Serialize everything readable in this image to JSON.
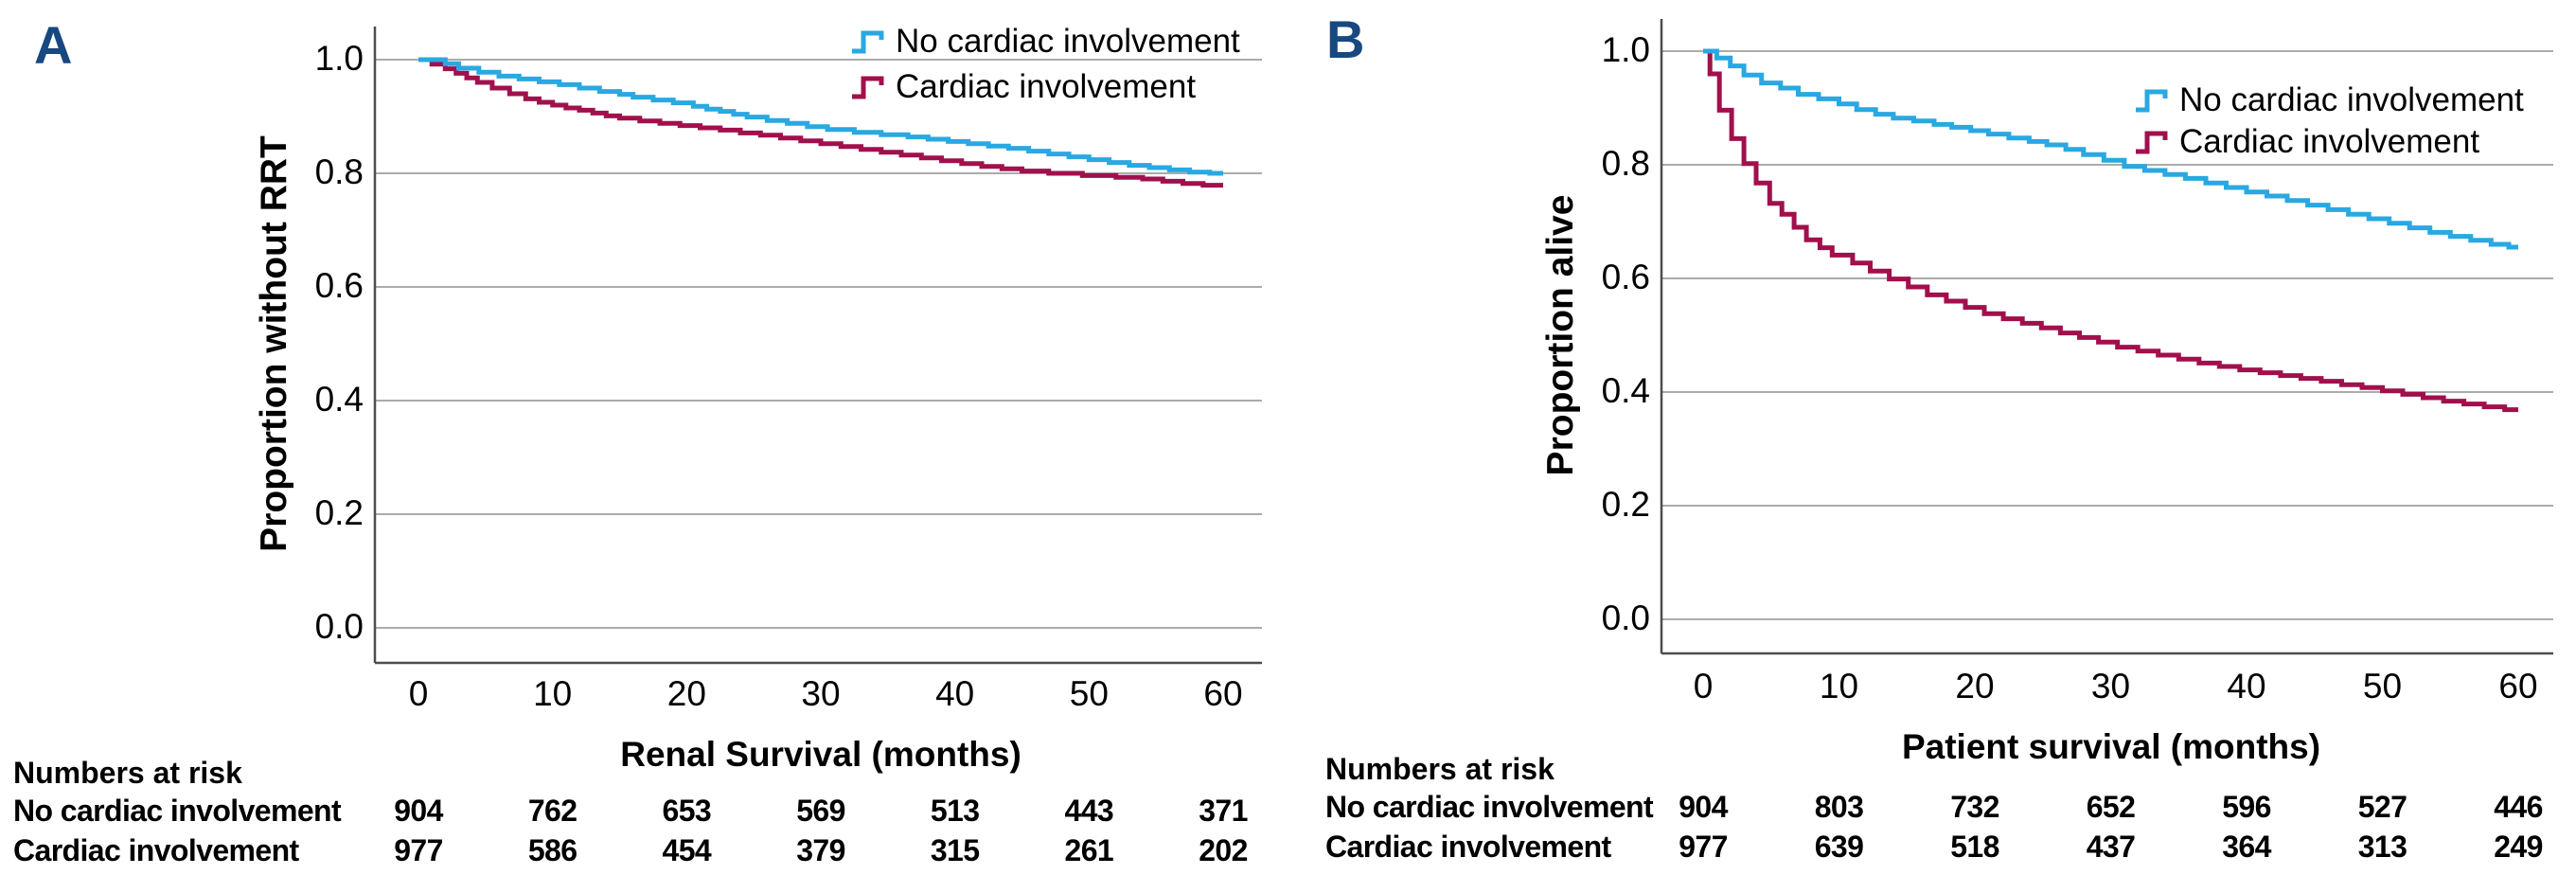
{
  "colors": {
    "no_cardiac": "#29A8E1",
    "cardiac": "#A1104C",
    "panel_letter": "#17487F",
    "gridline": "#ABABAB",
    "axis_line": "#4D4D4D"
  },
  "chart_data": [
    {
      "type": "line",
      "subtype": "kaplan-meier-step",
      "panel_label": "A",
      "xlabel": "Renal Survival (months)",
      "ylabel": "Proportion without RRT",
      "xlim": [
        0,
        60
      ],
      "ylim": [
        0.0,
        1.0
      ],
      "x_ticks": [
        "0",
        "10",
        "20",
        "30",
        "40",
        "50",
        "60"
      ],
      "y_ticks": [
        "1.0",
        "0.8",
        "0.6",
        "0.4",
        "0.2",
        "0.0"
      ],
      "grid": "horizontal",
      "legend_position": "top-right",
      "series": [
        {
          "name": "No cardiac involvement",
          "color": "#29A8E1",
          "points": [
            [
              0,
              1.0
            ],
            [
              2,
              0.993
            ],
            [
              3,
              0.985
            ],
            [
              4.5,
              0.978
            ],
            [
              6,
              0.971
            ],
            [
              7.5,
              0.966
            ],
            [
              9,
              0.961
            ],
            [
              10.5,
              0.956
            ],
            [
              12,
              0.95
            ],
            [
              13.5,
              0.944
            ],
            [
              15,
              0.939
            ],
            [
              16,
              0.934
            ],
            [
              17.5,
              0.929
            ],
            [
              19,
              0.924
            ],
            [
              20.5,
              0.918
            ],
            [
              21.5,
              0.913
            ],
            [
              22.5,
              0.909
            ],
            [
              23.5,
              0.904
            ],
            [
              24.5,
              0.899
            ],
            [
              26,
              0.893
            ],
            [
              27.5,
              0.888
            ],
            [
              29,
              0.882
            ],
            [
              30.5,
              0.877
            ],
            [
              32.5,
              0.872
            ],
            [
              34.5,
              0.868
            ],
            [
              36.5,
              0.864
            ],
            [
              38,
              0.86
            ],
            [
              39.5,
              0.856
            ],
            [
              41,
              0.852
            ],
            [
              42.5,
              0.848
            ],
            [
              44,
              0.844
            ],
            [
              45.5,
              0.839
            ],
            [
              47,
              0.834
            ],
            [
              48.5,
              0.829
            ],
            [
              50,
              0.824
            ],
            [
              51.5,
              0.819
            ],
            [
              53,
              0.814
            ],
            [
              54.5,
              0.81
            ],
            [
              56,
              0.806
            ],
            [
              57.5,
              0.802
            ],
            [
              59,
              0.8
            ]
          ]
        },
        {
          "name": "Cardiac involvement",
          "color": "#A1104C",
          "points": [
            [
              0,
              1.0
            ],
            [
              1,
              0.992
            ],
            [
              2,
              0.984
            ],
            [
              2.8,
              0.976
            ],
            [
              3.6,
              0.968
            ],
            [
              4.4,
              0.96
            ],
            [
              5.5,
              0.95
            ],
            [
              6.8,
              0.94
            ],
            [
              8,
              0.931
            ],
            [
              9,
              0.925
            ],
            [
              10,
              0.92
            ],
            [
              11,
              0.915
            ],
            [
              12,
              0.911
            ],
            [
              13,
              0.906
            ],
            [
              14,
              0.901
            ],
            [
              15,
              0.897
            ],
            [
              16.5,
              0.892
            ],
            [
              18,
              0.888
            ],
            [
              19.5,
              0.884
            ],
            [
              21,
              0.88
            ],
            [
              22.5,
              0.876
            ],
            [
              24,
              0.871
            ],
            [
              25.5,
              0.867
            ],
            [
              27,
              0.862
            ],
            [
              28.5,
              0.857
            ],
            [
              30,
              0.852
            ],
            [
              31.5,
              0.847
            ],
            [
              33,
              0.842
            ],
            [
              34.5,
              0.837
            ],
            [
              36,
              0.832
            ],
            [
              37.5,
              0.827
            ],
            [
              39,
              0.822
            ],
            [
              40.5,
              0.817
            ],
            [
              42,
              0.812
            ],
            [
              43.5,
              0.808
            ],
            [
              45,
              0.804
            ],
            [
              47,
              0.8
            ],
            [
              49.5,
              0.796
            ],
            [
              52,
              0.793
            ],
            [
              54,
              0.79
            ],
            [
              55.5,
              0.786
            ],
            [
              57,
              0.782
            ],
            [
              58.5,
              0.779
            ]
          ]
        }
      ],
      "numbers_at_risk": {
        "header": "Numbers at risk",
        "time_points": [
          0,
          10,
          20,
          30,
          40,
          50,
          60
        ],
        "rows": [
          {
            "label": "No cardiac involvement",
            "counts": [
              "904",
              "762",
              "653",
              "569",
              "513",
              "443",
              "371"
            ]
          },
          {
            "label": "Cardiac involvement",
            "counts": [
              "977",
              "586",
              "454",
              "379",
              "315",
              "261",
              "202"
            ]
          }
        ]
      }
    },
    {
      "type": "line",
      "subtype": "kaplan-meier-step",
      "panel_label": "B",
      "xlabel": "Patient survival (months)",
      "ylabel": "Proportion alive",
      "xlim": [
        0,
        60
      ],
      "ylim": [
        0.0,
        1.0
      ],
      "x_ticks": [
        "0",
        "10",
        "20",
        "30",
        "40",
        "50",
        "60"
      ],
      "y_ticks": [
        "1.0",
        "0.8",
        "0.6",
        "0.4",
        "0.2",
        "0.0"
      ],
      "grid": "horizontal",
      "legend_position": "right",
      "series": [
        {
          "name": "No cardiac involvement",
          "color": "#29A8E1",
          "points": [
            [
              0,
              1.0
            ],
            [
              1,
              0.988
            ],
            [
              2,
              0.974
            ],
            [
              3,
              0.958
            ],
            [
              4.3,
              0.944
            ],
            [
              5.7,
              0.935
            ],
            [
              7,
              0.924
            ],
            [
              8.5,
              0.916
            ],
            [
              10,
              0.907
            ],
            [
              11.3,
              0.897
            ],
            [
              12.7,
              0.889
            ],
            [
              14,
              0.882
            ],
            [
              15.5,
              0.877
            ],
            [
              17,
              0.871
            ],
            [
              18.3,
              0.866
            ],
            [
              19.7,
              0.86
            ],
            [
              21,
              0.854
            ],
            [
              22.5,
              0.847
            ],
            [
              24,
              0.841
            ],
            [
              25.3,
              0.835
            ],
            [
              26.7,
              0.827
            ],
            [
              28,
              0.818
            ],
            [
              29.5,
              0.808
            ],
            [
              31,
              0.797
            ],
            [
              32.5,
              0.79
            ],
            [
              34,
              0.783
            ],
            [
              35.5,
              0.776
            ],
            [
              37,
              0.768
            ],
            [
              38.5,
              0.76
            ],
            [
              40,
              0.752
            ],
            [
              41.5,
              0.745
            ],
            [
              43,
              0.737
            ],
            [
              44.5,
              0.729
            ],
            [
              46,
              0.721
            ],
            [
              47.5,
              0.713
            ],
            [
              49,
              0.705
            ],
            [
              50.5,
              0.697
            ],
            [
              52,
              0.689
            ],
            [
              53.5,
              0.681
            ],
            [
              55,
              0.674
            ],
            [
              56.5,
              0.667
            ],
            [
              58,
              0.66
            ],
            [
              59.3,
              0.655
            ]
          ]
        },
        {
          "name": "Cardiac involvement",
          "color": "#A1104C",
          "points": [
            [
              0,
              1.0
            ],
            [
              0.5,
              0.96
            ],
            [
              1.2,
              0.896
            ],
            [
              2.1,
              0.846
            ],
            [
              3,
              0.802
            ],
            [
              3.9,
              0.768
            ],
            [
              4.9,
              0.732
            ],
            [
              5.8,
              0.713
            ],
            [
              6.7,
              0.69
            ],
            [
              7.6,
              0.668
            ],
            [
              8.6,
              0.654
            ],
            [
              9.5,
              0.641
            ],
            [
              11,
              0.627
            ],
            [
              12.3,
              0.613
            ],
            [
              13.7,
              0.599
            ],
            [
              15.1,
              0.585
            ],
            [
              16.5,
              0.571
            ],
            [
              17.9,
              0.56
            ],
            [
              19.3,
              0.549
            ],
            [
              20.7,
              0.538
            ],
            [
              22.1,
              0.529
            ],
            [
              23.5,
              0.521
            ],
            [
              24.9,
              0.513
            ],
            [
              26.3,
              0.504
            ],
            [
              27.7,
              0.496
            ],
            [
              29.1,
              0.488
            ],
            [
              30.5,
              0.479
            ],
            [
              32,
              0.472
            ],
            [
              33.5,
              0.465
            ],
            [
              35,
              0.458
            ],
            [
              36.5,
              0.451
            ],
            [
              38,
              0.445
            ],
            [
              39.5,
              0.439
            ],
            [
              41,
              0.434
            ],
            [
              42.5,
              0.429
            ],
            [
              44,
              0.424
            ],
            [
              45.5,
              0.419
            ],
            [
              47,
              0.413
            ],
            [
              48.5,
              0.408
            ],
            [
              50,
              0.402
            ],
            [
              51.5,
              0.396
            ],
            [
              53,
              0.39
            ],
            [
              54.5,
              0.384
            ],
            [
              56,
              0.379
            ],
            [
              57.5,
              0.374
            ],
            [
              59,
              0.369
            ]
          ]
        }
      ],
      "numbers_at_risk": {
        "header": "Numbers at risk",
        "time_points": [
          0,
          10,
          20,
          30,
          40,
          50,
          60
        ],
        "rows": [
          {
            "label": "No cardiac involvement",
            "counts": [
              "904",
              "803",
              "732",
              "652",
              "596",
              "527",
              "446"
            ]
          },
          {
            "label": "Cardiac involvement",
            "counts": [
              "977",
              "639",
              "518",
              "437",
              "364",
              "313",
              "249"
            ]
          }
        ]
      }
    }
  ]
}
